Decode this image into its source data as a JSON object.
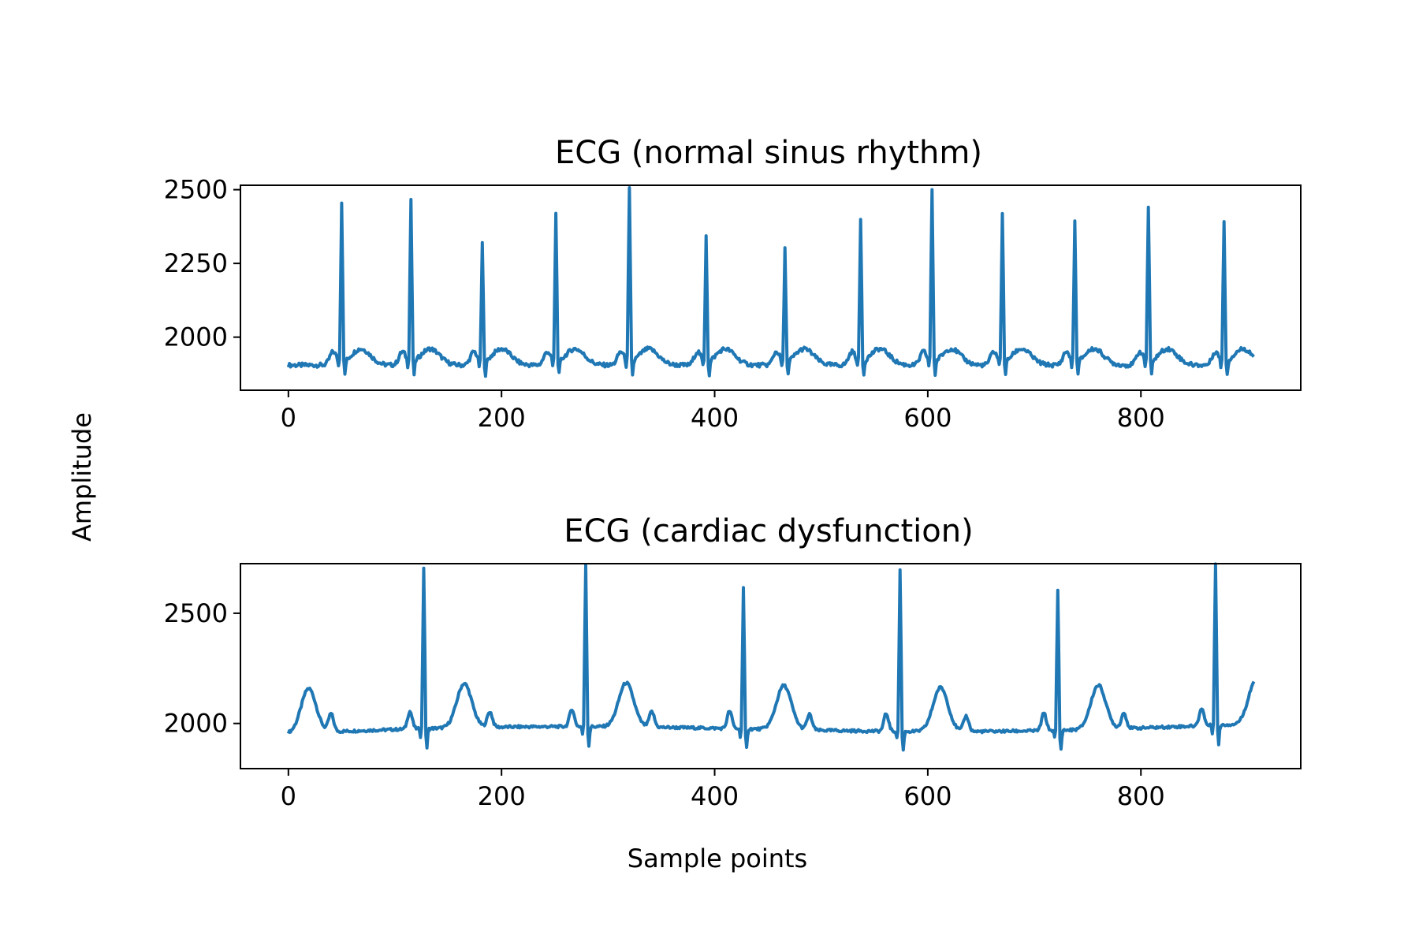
{
  "figure": {
    "ylabel": "Amplitude",
    "xlabel": "Sample points"
  },
  "chart_data": [
    {
      "type": "line",
      "title": "ECG (normal sinus rhythm)",
      "xlabel": "",
      "ylabel": "",
      "xlim": [
        -45,
        950
      ],
      "ylim": [
        1820,
        2515
      ],
      "xticks": [
        0,
        200,
        400,
        600,
        800
      ],
      "yticks": [
        2000,
        2250,
        2500
      ],
      "grid": false,
      "color": "#1f77b4",
      "series": [
        {
          "x_range": [
            0,
            906
          ],
          "baseline": 1905,
          "qrs_peaks": [
            {
              "x": 50,
              "y": 2450
            },
            {
              "x": 115,
              "y": 2460
            },
            {
              "x": 182,
              "y": 2310
            },
            {
              "x": 251,
              "y": 2415
            },
            {
              "x": 320,
              "y": 2495
            },
            {
              "x": 392,
              "y": 2340
            },
            {
              "x": 466,
              "y": 2290
            },
            {
              "x": 537,
              "y": 2390
            },
            {
              "x": 604,
              "y": 2495
            },
            {
              "x": 670,
              "y": 2415
            },
            {
              "x": 738,
              "y": 2385
            },
            {
              "x": 807,
              "y": 2435
            },
            {
              "x": 878,
              "y": 2385
            }
          ]
        }
      ]
    },
    {
      "type": "line",
      "title": "ECG (cardiac dysfunction)",
      "xlabel": "",
      "ylabel": "",
      "xlim": [
        -45,
        950
      ],
      "ylim": [
        1795,
        2725
      ],
      "xticks": [
        0,
        200,
        400,
        600,
        800
      ],
      "yticks": [
        2000,
        2500
      ],
      "grid": false,
      "color": "#1f77b4",
      "series": [
        {
          "x_range": [
            0,
            906
          ],
          "baseline": 1955,
          "qrs_peaks": [
            {
              "x": 127,
              "y": 2690
            },
            {
              "x": 279,
              "y": 2695
            },
            {
              "x": 427,
              "y": 2595
            },
            {
              "x": 574,
              "y": 2690
            },
            {
              "x": 722,
              "y": 2595
            },
            {
              "x": 870,
              "y": 2695
            }
          ]
        }
      ]
    }
  ]
}
